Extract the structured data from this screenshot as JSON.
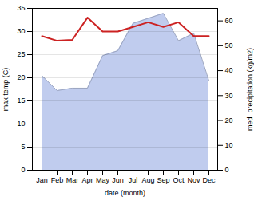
{
  "chart_data": {
    "type": "line",
    "xlabel": "date (month)",
    "ylabel": "max temp (C)",
    "y2label": "med. precipitation (kg/m2)",
    "categories": [
      "Jan",
      "Feb",
      "Mar",
      "Apr",
      "May",
      "Jun",
      "Jul",
      "Aug",
      "Sep",
      "Oct",
      "Nov",
      "Dec"
    ],
    "series": [
      {
        "type": "line",
        "color": "#cc2222",
        "values": [
          29.0,
          28.0,
          28.2,
          33.0,
          30.0,
          30.0,
          31.0,
          32.0,
          31.0,
          32.0,
          29.0,
          29.0
        ]
      },
      {
        "type": "area",
        "axis": "y2",
        "color": "#c0ccee",
        "values": [
          38,
          32,
          33,
          33,
          46,
          48,
          59,
          61,
          63,
          52,
          55,
          36
        ]
      }
    ],
    "ylim": [
      0,
      35
    ],
    "yticks": [
      0,
      5,
      10,
      15,
      20,
      25,
      30,
      35
    ],
    "y2lim": [
      0,
      65
    ],
    "y2ticks": [
      0,
      10,
      20,
      30,
      40,
      50,
      60
    ],
    "grid": true
  }
}
